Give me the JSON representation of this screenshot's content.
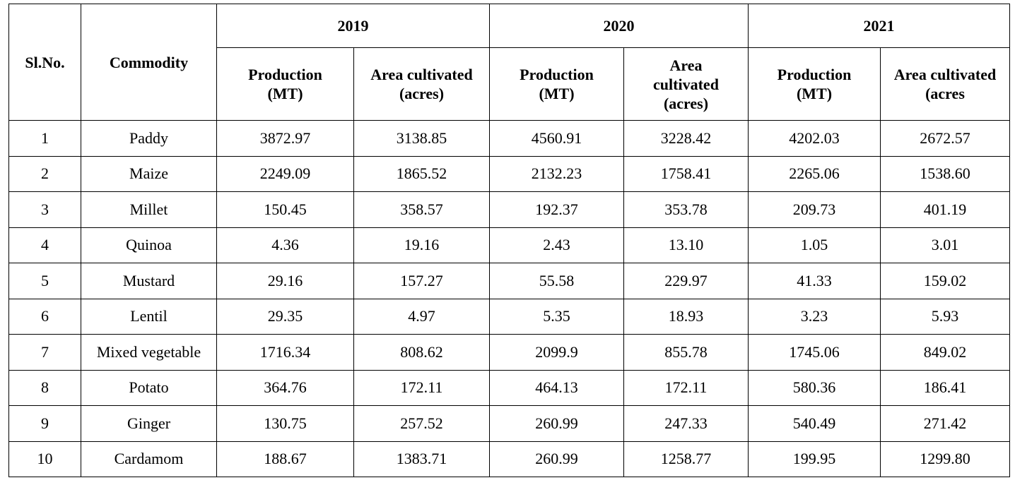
{
  "table": {
    "headers": {
      "slno": "Sl.No.",
      "commodity": "Commodity",
      "years": [
        "2019",
        "2020",
        "2021"
      ],
      "sub": [
        [
          "Production",
          "(MT)"
        ],
        [
          "Area cultivated",
          "(acres)"
        ],
        [
          "Production",
          "(MT)"
        ],
        [
          "Area",
          "cultivated",
          "(acres)"
        ],
        [
          "Production",
          "(MT)"
        ],
        [
          "Area cultivated",
          "(acres"
        ]
      ]
    },
    "rows": [
      [
        "1",
        "Paddy",
        "3872.97",
        "3138.85",
        "4560.91",
        "3228.42",
        "4202.03",
        "2672.57"
      ],
      [
        "2",
        "Maize",
        "2249.09",
        "1865.52",
        "2132.23",
        "1758.41",
        "2265.06",
        "1538.60"
      ],
      [
        "3",
        "Millet",
        "150.45",
        "358.57",
        "192.37",
        "353.78",
        "209.73",
        "401.19"
      ],
      [
        "4",
        "Quinoa",
        "4.36",
        "19.16",
        "2.43",
        "13.10",
        "1.05",
        "3.01"
      ],
      [
        "5",
        "Mustard",
        "29.16",
        "157.27",
        "55.58",
        "229.97",
        "41.33",
        "159.02"
      ],
      [
        "6",
        "Lentil",
        "29.35",
        "4.97",
        "5.35",
        "18.93",
        "3.23",
        "5.93"
      ],
      [
        "7",
        "Mixed vegetable",
        "1716.34",
        "808.62",
        "2099.9",
        "855.78",
        "1745.06",
        "849.02"
      ],
      [
        "8",
        "Potato",
        "364.76",
        "172.11",
        "464.13",
        "172.11",
        "580.36",
        "186.41"
      ],
      [
        "9",
        "Ginger",
        "130.75",
        "257.52",
        "260.99",
        "247.33",
        "540.49",
        "271.42"
      ],
      [
        "10",
        "Cardamom",
        "188.67",
        "1383.71",
        "260.99",
        "1258.77",
        "199.95",
        "1299.80"
      ]
    ]
  }
}
